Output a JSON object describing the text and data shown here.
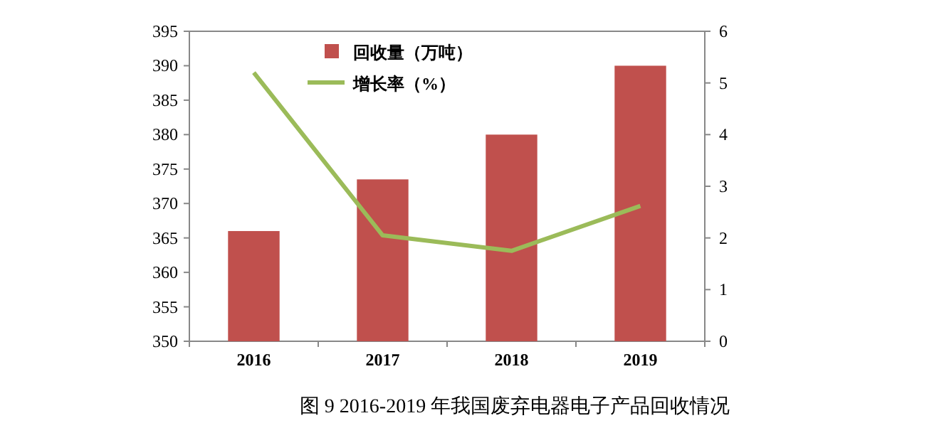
{
  "chart_data": {
    "type": "bar",
    "categories": [
      "2016",
      "2017",
      "2018",
      "2019"
    ],
    "series": [
      {
        "name": "回收量（万吨）",
        "color": "#c0504d",
        "values": [
          366,
          373.5,
          380,
          390
        ]
      },
      {
        "name": "增长率（%）",
        "type": "line",
        "axis": "y2",
        "color": "#9bbb59",
        "marker": "none",
        "values": [
          5.2,
          2.05,
          1.75,
          2.62
        ]
      }
    ],
    "ylim": [
      350,
      395
    ],
    "yticks": [
      350,
      355,
      360,
      365,
      370,
      375,
      380,
      385,
      390,
      395
    ],
    "y2lim": [
      0,
      6
    ],
    "y2ticks": [
      0,
      1,
      2,
      3,
      4,
      5,
      6
    ],
    "grid": false,
    "legend": "top",
    "annotations": [
      "图 9  2016-2019 年我国废弃电器电子产品回收情况"
    ]
  }
}
